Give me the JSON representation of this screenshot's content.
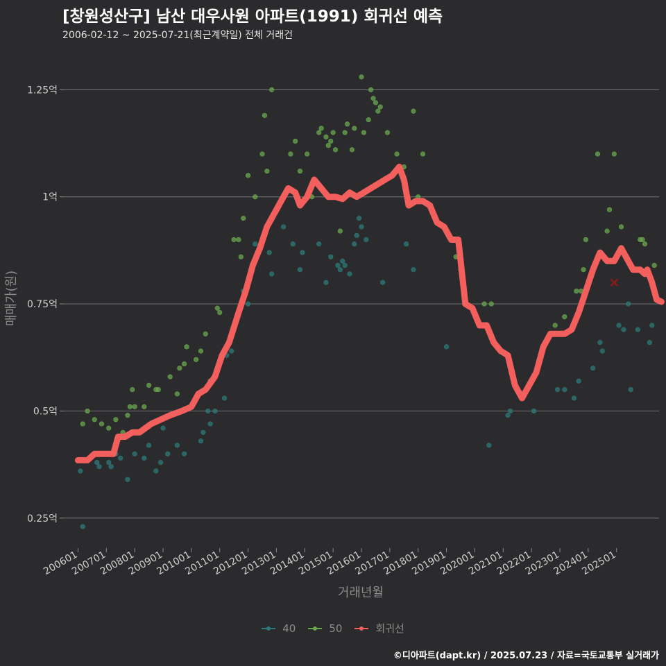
{
  "header": {
    "title": "[창원성산구] 남산 대우사원 아파트(1991) 회귀선 예측",
    "subtitle": "2006-02-12 ~ 2025-07-21(최근계약일) 전체 거래건"
  },
  "caption": "©디아파트(dapt.kr) / 2025.07.23 / 자료=국토교통부 실거래가",
  "colors": {
    "background": "#2b2b2d",
    "grid": "#6a6a6a",
    "series_40": "#2e7a78",
    "series_50": "#6aa84f",
    "regression": "#f25f5c"
  },
  "chart_data": {
    "type": "scatter",
    "title": "[창원성산구] 남산 대우사원 아파트(1991) 회귀선 예측",
    "subtitle": "2006-02-12 ~ 2025-07-21(최근계약일) 전체 거래건",
    "xlabel": "거래년월",
    "ylabel": "매매가(원)",
    "xlim": [
      "2005-07",
      "2026-07"
    ],
    "ylim": [
      0.18,
      1.33
    ],
    "y_unit": "억",
    "grid": true,
    "legend_position": "bottom",
    "y_ticks": [
      0.25,
      0.5,
      0.75,
      1.0,
      1.25
    ],
    "y_tick_labels": [
      "0.25억",
      "0.5억",
      "0.75억",
      "1억",
      "1.25억"
    ],
    "x_ticks": [
      "2006-01",
      "2007-01",
      "2008-01",
      "2009-01",
      "2010-01",
      "2011-01",
      "2012-01",
      "2013-01",
      "2014-01",
      "2015-01",
      "2016-01",
      "2017-01",
      "2018-01",
      "2019-01",
      "2020-01",
      "2021-01",
      "2022-01",
      "2023-01",
      "2024-01",
      "2025-01"
    ],
    "x_tick_labels": [
      "200601",
      "200701",
      "200801",
      "200901",
      "201001",
      "201101",
      "201201",
      "201301",
      "201401",
      "201501",
      "201601",
      "201701",
      "201801",
      "201901",
      "202001",
      "202101",
      "202201",
      "202301",
      "202401",
      "202501"
    ],
    "series": [
      {
        "name": "40",
        "color": "#2e7a78",
        "points": [
          [
            "2006-02",
            0.36
          ],
          [
            "2006-03",
            0.23
          ],
          [
            "2006-09",
            0.38
          ],
          [
            "2006-10",
            0.37
          ],
          [
            "2007-02",
            0.38
          ],
          [
            "2007-03",
            0.37
          ],
          [
            "2007-05",
            0.4
          ],
          [
            "2007-07",
            0.39
          ],
          [
            "2007-10",
            0.34
          ],
          [
            "2008-01",
            0.4
          ],
          [
            "2008-05",
            0.39
          ],
          [
            "2008-07",
            0.42
          ],
          [
            "2008-10",
            0.36
          ],
          [
            "2008-12",
            0.38
          ],
          [
            "2009-01",
            0.46
          ],
          [
            "2009-03",
            0.4
          ],
          [
            "2009-07",
            0.42
          ],
          [
            "2009-10",
            0.4
          ],
          [
            "2010-02",
            0.52
          ],
          [
            "2010-05",
            0.43
          ],
          [
            "2010-06",
            0.45
          ],
          [
            "2010-08",
            0.5
          ],
          [
            "2010-09",
            0.47
          ],
          [
            "2010-11",
            0.5
          ],
          [
            "2011-03",
            0.53
          ],
          [
            "2011-04",
            0.63
          ],
          [
            "2011-06",
            0.64
          ],
          [
            "2011-07",
            0.7
          ],
          [
            "2011-08",
            0.71
          ],
          [
            "2011-11",
            0.78
          ],
          [
            "2012-01",
            0.75
          ],
          [
            "2012-04",
            0.89
          ],
          [
            "2012-10",
            0.87
          ],
          [
            "2012-11",
            0.82
          ],
          [
            "2013-04",
            0.93
          ],
          [
            "2013-08",
            0.89
          ],
          [
            "2013-11",
            0.83
          ],
          [
            "2013-12",
            0.87
          ],
          [
            "2014-07",
            0.89
          ],
          [
            "2014-10",
            0.8
          ],
          [
            "2014-12",
            0.86
          ],
          [
            "2015-03",
            0.84
          ],
          [
            "2015-04",
            0.83
          ],
          [
            "2015-05",
            0.85
          ],
          [
            "2015-06",
            0.84
          ],
          [
            "2015-08",
            0.82
          ],
          [
            "2015-10",
            0.89
          ],
          [
            "2015-11",
            0.91
          ],
          [
            "2015-12",
            0.95
          ],
          [
            "2016-01",
            0.93
          ],
          [
            "2016-03",
            0.9
          ],
          [
            "2016-10",
            0.8
          ],
          [
            "2017-08",
            0.89
          ],
          [
            "2017-11",
            0.83
          ],
          [
            "2019-01",
            0.65
          ],
          [
            "2020-07",
            0.42
          ],
          [
            "2021-03",
            0.49
          ],
          [
            "2021-04",
            0.5
          ],
          [
            "2022-02",
            0.5
          ],
          [
            "2022-12",
            0.55
          ],
          [
            "2023-03",
            0.55
          ],
          [
            "2023-07",
            0.53
          ],
          [
            "2023-09",
            0.57
          ],
          [
            "2024-03",
            0.6
          ],
          [
            "2024-06",
            0.66
          ],
          [
            "2024-07",
            0.64
          ],
          [
            "2025-02",
            0.7
          ],
          [
            "2025-04",
            0.69
          ],
          [
            "2025-06",
            0.75
          ],
          [
            "2025-07",
            0.55
          ],
          [
            "2025-10",
            0.69
          ],
          [
            "2026-03",
            0.66
          ],
          [
            "2026-04",
            0.7
          ]
        ]
      },
      {
        "name": "50",
        "color": "#6aa84f",
        "points": [
          [
            "2006-03",
            0.47
          ],
          [
            "2006-05",
            0.5
          ],
          [
            "2006-08",
            0.48
          ],
          [
            "2006-11",
            0.47
          ],
          [
            "2007-02",
            0.46
          ],
          [
            "2007-05",
            0.48
          ],
          [
            "2007-08",
            0.45
          ],
          [
            "2007-10",
            0.49
          ],
          [
            "2007-11",
            0.51
          ],
          [
            "2007-12",
            0.55
          ],
          [
            "2008-01",
            0.51
          ],
          [
            "2008-05",
            0.51
          ],
          [
            "2008-07",
            0.56
          ],
          [
            "2008-10",
            0.55
          ],
          [
            "2008-11",
            0.55
          ],
          [
            "2009-04",
            0.58
          ],
          [
            "2009-07",
            0.54
          ],
          [
            "2009-08",
            0.6
          ],
          [
            "2009-10",
            0.61
          ],
          [
            "2009-11",
            0.65
          ],
          [
            "2010-03",
            0.62
          ],
          [
            "2010-05",
            0.64
          ],
          [
            "2010-07",
            0.68
          ],
          [
            "2010-09",
            0.57
          ],
          [
            "2010-12",
            0.74
          ],
          [
            "2011-01",
            0.73
          ],
          [
            "2011-07",
            0.9
          ],
          [
            "2011-09",
            0.9
          ],
          [
            "2011-10",
            0.86
          ],
          [
            "2011-11",
            0.95
          ],
          [
            "2012-01",
            1.05
          ],
          [
            "2012-04",
            1.0
          ],
          [
            "2012-07",
            1.1
          ],
          [
            "2012-08",
            1.19
          ],
          [
            "2012-09",
            1.06
          ],
          [
            "2012-11",
            1.25
          ],
          [
            "2013-03",
            0.99
          ],
          [
            "2013-07",
            1.1
          ],
          [
            "2013-09",
            1.13
          ],
          [
            "2013-11",
            1.06
          ],
          [
            "2014-02",
            1.1
          ],
          [
            "2014-04",
            1.0
          ],
          [
            "2014-07",
            1.15
          ],
          [
            "2014-08",
            1.16
          ],
          [
            "2014-10",
            1.14
          ],
          [
            "2014-11",
            1.12
          ],
          [
            "2014-12",
            1.13
          ],
          [
            "2015-01",
            1.15
          ],
          [
            "2015-02",
            1.11
          ],
          [
            "2015-04",
            0.92
          ],
          [
            "2015-06",
            1.15
          ],
          [
            "2015-07",
            1.17
          ],
          [
            "2015-09",
            1.11
          ],
          [
            "2015-10",
            1.16
          ],
          [
            "2016-01",
            1.28
          ],
          [
            "2016-02",
            1.15
          ],
          [
            "2016-04",
            1.18
          ],
          [
            "2016-05",
            1.25
          ],
          [
            "2016-06",
            1.23
          ],
          [
            "2016-07",
            1.22
          ],
          [
            "2016-08",
            1.2
          ],
          [
            "2016-09",
            1.21
          ],
          [
            "2016-12",
            1.15
          ],
          [
            "2017-04",
            1.1
          ],
          [
            "2017-06",
            1.06
          ],
          [
            "2017-07",
            1.07
          ],
          [
            "2017-11",
            1.2
          ],
          [
            "2018-01",
            1.0
          ],
          [
            "2018-03",
            1.1
          ],
          [
            "2019-05",
            0.86
          ],
          [
            "2019-07",
            0.83
          ],
          [
            "2020-05",
            0.75
          ],
          [
            "2020-08",
            0.75
          ],
          [
            "2022-11",
            0.7
          ],
          [
            "2023-03",
            0.72
          ],
          [
            "2023-08",
            0.78
          ],
          [
            "2023-10",
            0.78
          ],
          [
            "2023-11",
            0.83
          ],
          [
            "2023-12",
            0.9
          ],
          [
            "2024-05",
            1.1
          ],
          [
            "2024-09",
            0.92
          ],
          [
            "2024-10",
            0.97
          ],
          [
            "2024-12",
            1.1
          ],
          [
            "2025-03",
            0.93
          ],
          [
            "2025-11",
            0.9
          ],
          [
            "2025-12",
            0.9
          ],
          [
            "2026-01",
            0.89
          ],
          [
            "2026-05",
            0.84
          ]
        ]
      },
      {
        "name": "회귀선",
        "color": "#f25f5c",
        "points": [
          [
            "2006-01",
            0.385
          ],
          [
            "2006-05",
            0.385
          ],
          [
            "2006-08",
            0.4
          ],
          [
            "2007-01",
            0.4
          ],
          [
            "2007-04",
            0.4
          ],
          [
            "2007-06",
            0.44
          ],
          [
            "2007-09",
            0.44
          ],
          [
            "2007-12",
            0.45
          ],
          [
            "2008-03",
            0.45
          ],
          [
            "2008-08",
            0.47
          ],
          [
            "2008-12",
            0.48
          ],
          [
            "2009-04",
            0.49
          ],
          [
            "2009-09",
            0.5
          ],
          [
            "2010-01",
            0.51
          ],
          [
            "2010-04",
            0.54
          ],
          [
            "2010-07",
            0.55
          ],
          [
            "2010-11",
            0.58
          ],
          [
            "2011-02",
            0.63
          ],
          [
            "2011-05",
            0.66
          ],
          [
            "2011-09",
            0.73
          ],
          [
            "2011-12",
            0.78
          ],
          [
            "2012-03",
            0.84
          ],
          [
            "2012-06",
            0.88
          ],
          [
            "2012-09",
            0.93
          ],
          [
            "2012-12",
            0.96
          ],
          [
            "2013-03",
            0.99
          ],
          [
            "2013-06",
            1.02
          ],
          [
            "2013-09",
            1.01
          ],
          [
            "2013-11",
            0.98
          ],
          [
            "2014-02",
            1.0
          ],
          [
            "2014-05",
            1.04
          ],
          [
            "2014-08",
            1.02
          ],
          [
            "2014-11",
            1.0
          ],
          [
            "2015-02",
            1.0
          ],
          [
            "2015-05",
            0.995
          ],
          [
            "2015-08",
            1.01
          ],
          [
            "2015-11",
            1.0
          ],
          [
            "2016-02",
            1.01
          ],
          [
            "2016-05",
            1.02
          ],
          [
            "2016-08",
            1.03
          ],
          [
            "2016-11",
            1.04
          ],
          [
            "2017-02",
            1.05
          ],
          [
            "2017-05",
            1.07
          ],
          [
            "2017-07",
            1.04
          ],
          [
            "2017-09",
            0.98
          ],
          [
            "2017-12",
            0.99
          ],
          [
            "2018-03",
            0.99
          ],
          [
            "2018-06",
            0.98
          ],
          [
            "2018-09",
            0.94
          ],
          [
            "2018-12",
            0.93
          ],
          [
            "2019-03",
            0.9
          ],
          [
            "2019-06",
            0.9
          ],
          [
            "2019-09",
            0.75
          ],
          [
            "2019-12",
            0.74
          ],
          [
            "2020-03",
            0.7
          ],
          [
            "2020-06",
            0.7
          ],
          [
            "2020-09",
            0.66
          ],
          [
            "2020-12",
            0.64
          ],
          [
            "2021-03",
            0.63
          ],
          [
            "2021-06",
            0.56
          ],
          [
            "2021-09",
            0.53
          ],
          [
            "2021-12",
            0.56
          ],
          [
            "2022-03",
            0.59
          ],
          [
            "2022-06",
            0.65
          ],
          [
            "2022-09",
            0.68
          ],
          [
            "2022-12",
            0.68
          ],
          [
            "2023-03",
            0.68
          ],
          [
            "2023-06",
            0.69
          ],
          [
            "2023-09",
            0.73
          ],
          [
            "2023-12",
            0.78
          ],
          [
            "2024-03",
            0.83
          ],
          [
            "2024-06",
            0.87
          ],
          [
            "2024-09",
            0.85
          ],
          [
            "2024-12",
            0.85
          ],
          [
            "2025-03",
            0.88
          ],
          [
            "2025-06",
            0.85
          ],
          [
            "2025-08",
            0.83
          ],
          [
            "2025-11",
            0.83
          ],
          [
            "2026-01",
            0.82
          ],
          [
            "2026-02",
            0.83
          ],
          [
            "2026-04",
            0.8
          ],
          [
            "2026-06",
            0.76
          ],
          [
            "2026-08",
            0.755
          ]
        ]
      }
    ],
    "marker": {
      "x": "2024-12",
      "y": 0.8,
      "color": "#8b1a1a"
    }
  }
}
